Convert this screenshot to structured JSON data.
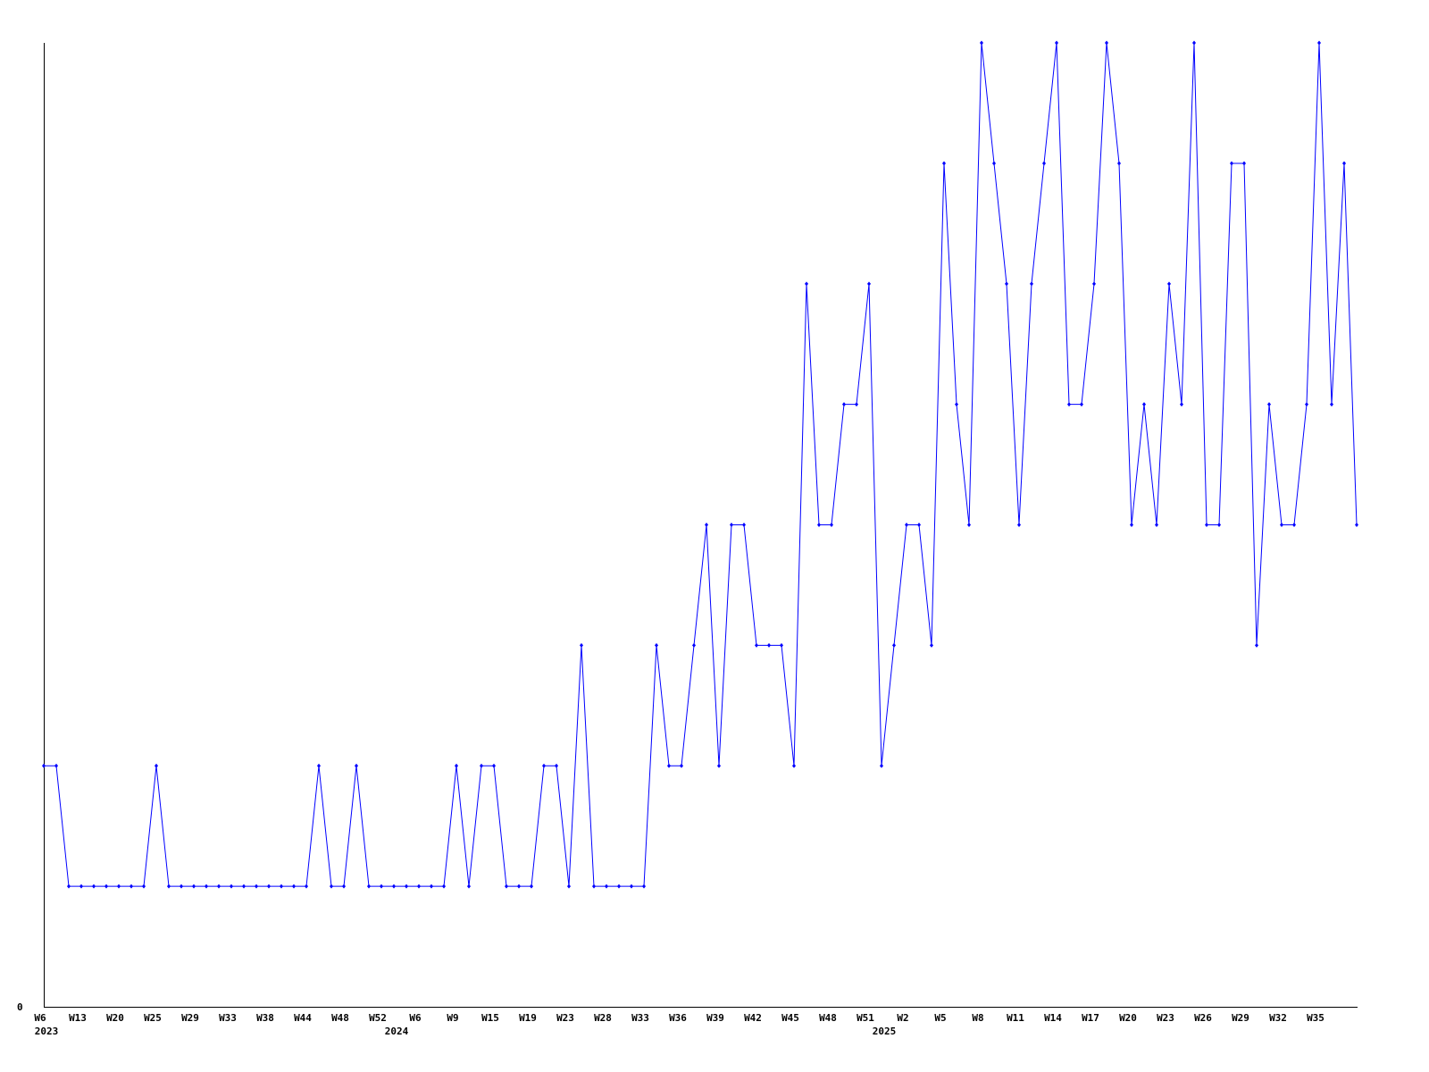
{
  "chart_data": {
    "type": "line",
    "title": "",
    "xlabel": "",
    "ylabel": "",
    "ylim": [
      0,
      8
    ],
    "y_tick_labels": [
      "0"
    ],
    "grid": false,
    "legend": "none",
    "line_color": "#0000ff",
    "axis_color": "#000000",
    "values": [
      2,
      2,
      1,
      1,
      1,
      1,
      1,
      1,
      1,
      2,
      1,
      1,
      1,
      1,
      1,
      1,
      1,
      1,
      1,
      1,
      1,
      1,
      2,
      1,
      1,
      2,
      1,
      1,
      1,
      1,
      1,
      1,
      1,
      2,
      1,
      2,
      2,
      1,
      1,
      1,
      2,
      2,
      1,
      3,
      1,
      1,
      1,
      1,
      1,
      3,
      2,
      2,
      3,
      4,
      2,
      4,
      4,
      3,
      3,
      3,
      2,
      6,
      4,
      4,
      5,
      5,
      6,
      2,
      3,
      4,
      4,
      3,
      7,
      5,
      4,
      8,
      7,
      6,
      4,
      6,
      7,
      8,
      5,
      5,
      6,
      8,
      7,
      4,
      5,
      4,
      6,
      5,
      8,
      4,
      4,
      7,
      7,
      3,
      5,
      4,
      4,
      5,
      8,
      5,
      7,
      4
    ],
    "x_tick_labels": [
      {
        "point": 0,
        "label": "W6"
      },
      {
        "point": 3,
        "label": "W13"
      },
      {
        "point": 6,
        "label": "W20"
      },
      {
        "point": 9,
        "label": "W25"
      },
      {
        "point": 12,
        "label": "W29"
      },
      {
        "point": 15,
        "label": "W33"
      },
      {
        "point": 18,
        "label": "W38"
      },
      {
        "point": 21,
        "label": "W44"
      },
      {
        "point": 24,
        "label": "W48"
      },
      {
        "point": 27,
        "label": "W52"
      },
      {
        "point": 30,
        "label": "W6"
      },
      {
        "point": 33,
        "label": "W9"
      },
      {
        "point": 36,
        "label": "W15"
      },
      {
        "point": 39,
        "label": "W19"
      },
      {
        "point": 42,
        "label": "W23"
      },
      {
        "point": 45,
        "label": "W28"
      },
      {
        "point": 48,
        "label": "W33"
      },
      {
        "point": 51,
        "label": "W36"
      },
      {
        "point": 54,
        "label": "W39"
      },
      {
        "point": 57,
        "label": "W42"
      },
      {
        "point": 60,
        "label": "W45"
      },
      {
        "point": 63,
        "label": "W48"
      },
      {
        "point": 66,
        "label": "W51"
      },
      {
        "point": 69,
        "label": "W2"
      },
      {
        "point": 72,
        "label": "W5"
      },
      {
        "point": 75,
        "label": "W8"
      },
      {
        "point": 78,
        "label": "W11"
      },
      {
        "point": 81,
        "label": "W14"
      },
      {
        "point": 84,
        "label": "W17"
      },
      {
        "point": 87,
        "label": "W20"
      },
      {
        "point": 90,
        "label": "W23"
      },
      {
        "point": 93,
        "label": "W26"
      },
      {
        "point": 96,
        "label": "W29"
      },
      {
        "point": 99,
        "label": "W32"
      },
      {
        "point": 102,
        "label": "W35"
      }
    ],
    "year_labels": [
      {
        "point": 0,
        "label": "2023"
      },
      {
        "point": 28,
        "label": "2024"
      },
      {
        "point": 67,
        "label": "2025"
      }
    ]
  }
}
